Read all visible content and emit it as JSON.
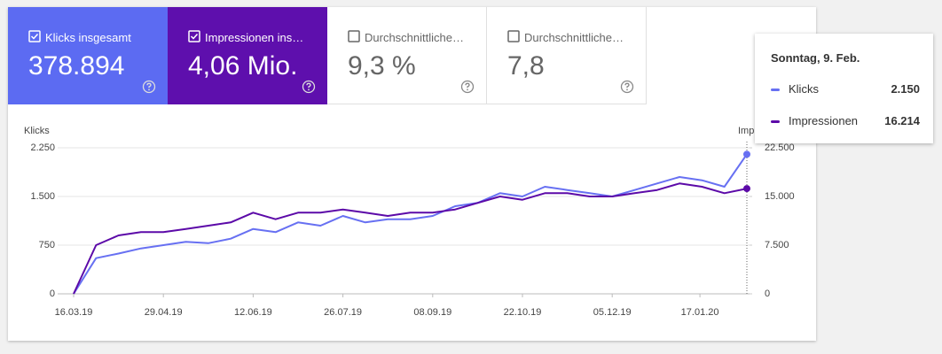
{
  "cards": [
    {
      "label": "Klicks insgesamt",
      "value": "378.894"
    },
    {
      "label": "Impressionen ins…",
      "value": "4,06 Mio."
    },
    {
      "label": "Durchschnittliche…",
      "value": "9,3 %"
    },
    {
      "label": "Durchschnittliche…",
      "value": "7,8"
    }
  ],
  "chart_data": {
    "type": "line",
    "y_label": "Klicks",
    "y2_label": "Impressionen",
    "x": [
      "16.03.19",
      "27.03.19",
      "07.04.19",
      "18.04.19",
      "29.04.19",
      "10.05.19",
      "21.05.19",
      "01.06.19",
      "12.06.19",
      "23.06.19",
      "04.07.19",
      "15.07.19",
      "26.07.19",
      "06.08.19",
      "17.08.19",
      "28.08.19",
      "08.09.19",
      "19.09.19",
      "30.09.19",
      "11.10.19",
      "22.10.19",
      "02.11.19",
      "13.11.19",
      "24.11.19",
      "05.12.19",
      "16.12.19",
      "27.12.19",
      "07.01.20",
      "18.01.20",
      "29.01.20",
      "09.02.20"
    ],
    "xticks": [
      "16.03.19",
      "29.04.19",
      "12.06.19",
      "26.07.19",
      "08.09.19",
      "22.10.19",
      "05.12.19",
      "17.01.20"
    ],
    "ylim": [
      0,
      2250
    ],
    "yticks": [
      0,
      {
        "value": 750,
        "label": "750"
      },
      {
        "value": 1500,
        "label": "1.500"
      },
      {
        "value": 2250,
        "label": "2.250"
      }
    ],
    "y2lim": [
      0,
      22500
    ],
    "y2ticks": [
      0,
      {
        "value": 7500,
        "label": "7.500"
      },
      {
        "value": 15000,
        "label": "15.000"
      },
      {
        "value": 22500,
        "label": "22.500"
      }
    ],
    "grid": true,
    "series": [
      {
        "name": "Klicks",
        "color": "#6770f2",
        "values": [
          0,
          550,
          620,
          700,
          750,
          800,
          780,
          850,
          1000,
          950,
          1100,
          1050,
          1200,
          1100,
          1150,
          1150,
          1200,
          1350,
          1400,
          1550,
          1500,
          1650,
          1600,
          1550,
          1500,
          1600,
          1700,
          1800,
          1750,
          1650,
          2150
        ]
      },
      {
        "name": "Impressionen",
        "color": "#5c0aa8",
        "axis": "y2",
        "values": [
          0,
          7500,
          9000,
          9500,
          9500,
          10000,
          10500,
          11000,
          12500,
          11500,
          12500,
          12500,
          13000,
          12500,
          12000,
          12500,
          12500,
          13000,
          14000,
          15000,
          14500,
          15500,
          15500,
          15000,
          15000,
          15500,
          16000,
          17000,
          16500,
          15500,
          16214
        ]
      }
    ]
  },
  "tooltip": {
    "date": "Sonntag, 9. Feb.",
    "rows": [
      {
        "name": "Klicks",
        "value": "2.150"
      },
      {
        "name": "Impressionen",
        "value": "16.214"
      }
    ]
  }
}
